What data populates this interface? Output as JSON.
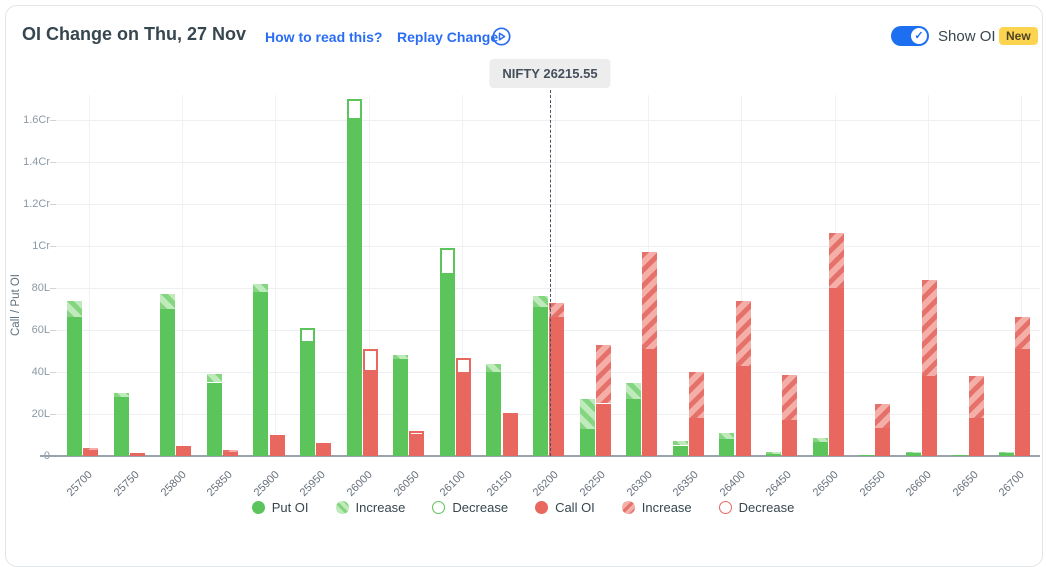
{
  "header": {
    "title": "OI Change on Thu, 27 Nov",
    "how_to_read": "How to read this?",
    "replay": "Replay Change",
    "show_oi_label": "Show OI",
    "new_badge": "New",
    "show_oi_on": true
  },
  "spot_label": "NIFTY 26215.55",
  "colors": {
    "put_green": "#5bc55b",
    "put_green_light": "#bfeabb",
    "put_green_band": "#84d57f",
    "call_red": "#e8685f",
    "call_red_light": "#f4afa9",
    "call_red_band": "#e5716a",
    "link_blue": "#2a6df4",
    "toggle_blue": "#1d6ff2",
    "badge_yellow": "#fcd44f",
    "title_text": "#37474f",
    "axis_text": "#8b98a4"
  },
  "chart_data": {
    "type": "bar",
    "title": "OI Change on Thu, 27 Nov",
    "ylabel": "Call / Put OI",
    "units": "lakh (L); 1Cr = 100L",
    "ylim": [
      0,
      172
    ],
    "grid": true,
    "legend_position": "bottom",
    "spot": {
      "name": "NIFTY",
      "value": 26215.55
    },
    "y_ticks": [
      {
        "v": 0,
        "label": "0"
      },
      {
        "v": 20,
        "label": "20L"
      },
      {
        "v": 40,
        "label": "40L"
      },
      {
        "v": 60,
        "label": "60L"
      },
      {
        "v": 80,
        "label": "80L"
      },
      {
        "v": 100,
        "label": "1Cr"
      },
      {
        "v": 120,
        "label": "1.2Cr"
      },
      {
        "v": 140,
        "label": "1.4Cr"
      },
      {
        "v": 160,
        "label": "1.6Cr"
      }
    ],
    "legend": [
      {
        "label": "Put OI",
        "swatch": "put-solid"
      },
      {
        "label": "Increase",
        "swatch": "put-striped"
      },
      {
        "label": "Decrease",
        "swatch": "put-hollow"
      },
      {
        "label": "Call OI",
        "swatch": "call-solid"
      },
      {
        "label": "Increase",
        "swatch": "call-striped"
      },
      {
        "label": "Decrease",
        "swatch": "call-hollow"
      }
    ],
    "bars": [
      {
        "strike": 25700,
        "put": {
          "base": 66,
          "inc": 8,
          "dec": 0
        },
        "call": {
          "base": 3,
          "inc": 1,
          "dec": 0
        }
      },
      {
        "strike": 25750,
        "put": {
          "base": 28,
          "inc": 2,
          "dec": 0
        },
        "call": {
          "base": 1.4,
          "inc": 0,
          "dec": 0
        }
      },
      {
        "strike": 25800,
        "put": {
          "base": 70,
          "inc": 7,
          "dec": 0
        },
        "call": {
          "base": 3.5,
          "inc": 0,
          "dec": 1.5
        }
      },
      {
        "strike": 25850,
        "put": {
          "base": 35,
          "inc": 4,
          "dec": 0
        },
        "call": {
          "base": 2,
          "inc": 0.7,
          "dec": 0
        }
      },
      {
        "strike": 25900,
        "put": {
          "base": 78,
          "inc": 4,
          "dec": 0
        },
        "call": {
          "base": 8,
          "inc": 0,
          "dec": 2
        }
      },
      {
        "strike": 25950,
        "put": {
          "base": 54,
          "inc": 0,
          "dec": 7
        },
        "call": {
          "base": 4.4,
          "inc": 0,
          "dec": 1.6
        }
      },
      {
        "strike": 26000,
        "put": {
          "base": 160,
          "inc": 0,
          "dec": 10
        },
        "call": {
          "base": 40,
          "inc": 0,
          "dec": 11
        }
      },
      {
        "strike": 26050,
        "put": {
          "base": 46,
          "inc": 2,
          "dec": 0
        },
        "call": {
          "base": 9.5,
          "inc": 0,
          "dec": 2.5
        }
      },
      {
        "strike": 26100,
        "put": {
          "base": 86,
          "inc": 0,
          "dec": 13
        },
        "call": {
          "base": 39,
          "inc": 0,
          "dec": 7.5
        }
      },
      {
        "strike": 26150,
        "put": {
          "base": 40,
          "inc": 4,
          "dec": 0
        },
        "call": {
          "base": 19,
          "inc": 0,
          "dec": 1.5
        }
      },
      {
        "strike": 26200,
        "put": {
          "base": 71,
          "inc": 5,
          "dec": 0
        },
        "call": {
          "base": 66,
          "inc": 7,
          "dec": 0
        }
      },
      {
        "strike": 26250,
        "put": {
          "base": 13,
          "inc": 14,
          "dec": 0
        },
        "call": {
          "base": 25,
          "inc": 28,
          "dec": 0
        }
      },
      {
        "strike": 26300,
        "put": {
          "base": 27,
          "inc": 8,
          "dec": 0
        },
        "call": {
          "base": 51,
          "inc": 46,
          "dec": 0
        }
      },
      {
        "strike": 26350,
        "put": {
          "base": 5,
          "inc": 2,
          "dec": 0
        },
        "call": {
          "base": 18,
          "inc": 22,
          "dec": 0
        }
      },
      {
        "strike": 26400,
        "put": {
          "base": 8,
          "inc": 3,
          "dec": 0
        },
        "call": {
          "base": 43,
          "inc": 31,
          "dec": 0
        }
      },
      {
        "strike": 26450,
        "put": {
          "base": 1,
          "inc": 1,
          "dec": 0
        },
        "call": {
          "base": 17,
          "inc": 21.5,
          "dec": 0
        }
      },
      {
        "strike": 26500,
        "put": {
          "base": 6.5,
          "inc": 2,
          "dec": 0
        },
        "call": {
          "base": 80,
          "inc": 26,
          "dec": 0
        }
      },
      {
        "strike": 26550,
        "put": {
          "base": 0.3,
          "inc": 0.4,
          "dec": 0
        },
        "call": {
          "base": 13.5,
          "inc": 11.5,
          "dec": 0
        }
      },
      {
        "strike": 26600,
        "put": {
          "base": 1.5,
          "inc": 0.5,
          "dec": 0
        },
        "call": {
          "base": 38,
          "inc": 46,
          "dec": 0
        }
      },
      {
        "strike": 26650,
        "put": {
          "base": 0.3,
          "inc": 0.3,
          "dec": 0
        },
        "call": {
          "base": 18,
          "inc": 20,
          "dec": 0
        }
      },
      {
        "strike": 26700,
        "put": {
          "base": 1.5,
          "inc": 0.5,
          "dec": 0
        },
        "call": {
          "base": 51,
          "inc": 15,
          "dec": 0
        }
      }
    ]
  }
}
